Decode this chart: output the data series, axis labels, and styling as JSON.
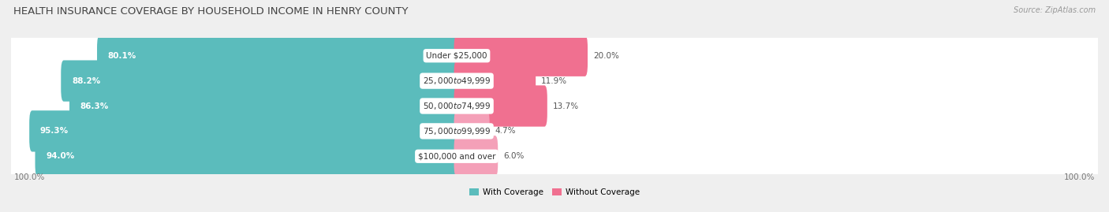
{
  "title": "HEALTH INSURANCE COVERAGE BY HOUSEHOLD INCOME IN HENRY COUNTY",
  "source": "Source: ZipAtlas.com",
  "categories": [
    "Under $25,000",
    "$25,000 to $49,999",
    "$50,000 to $74,999",
    "$75,000 to $99,999",
    "$100,000 and over"
  ],
  "with_coverage": [
    80.1,
    88.2,
    86.3,
    95.3,
    94.0
  ],
  "without_coverage": [
    20.0,
    11.9,
    13.7,
    4.7,
    6.0
  ],
  "color_coverage": "#5BBCBC",
  "color_no_coverage": "#F07090",
  "color_no_coverage_light": "#F4A0B8",
  "bg_color": "#efefef",
  "bar_bg": "#ffffff",
  "title_fontsize": 9.5,
  "label_fontsize": 7.5,
  "value_fontsize": 7.5,
  "tick_fontsize": 7.5,
  "legend_fontsize": 7.5,
  "left_label": "100.0%",
  "right_label": "100.0%"
}
